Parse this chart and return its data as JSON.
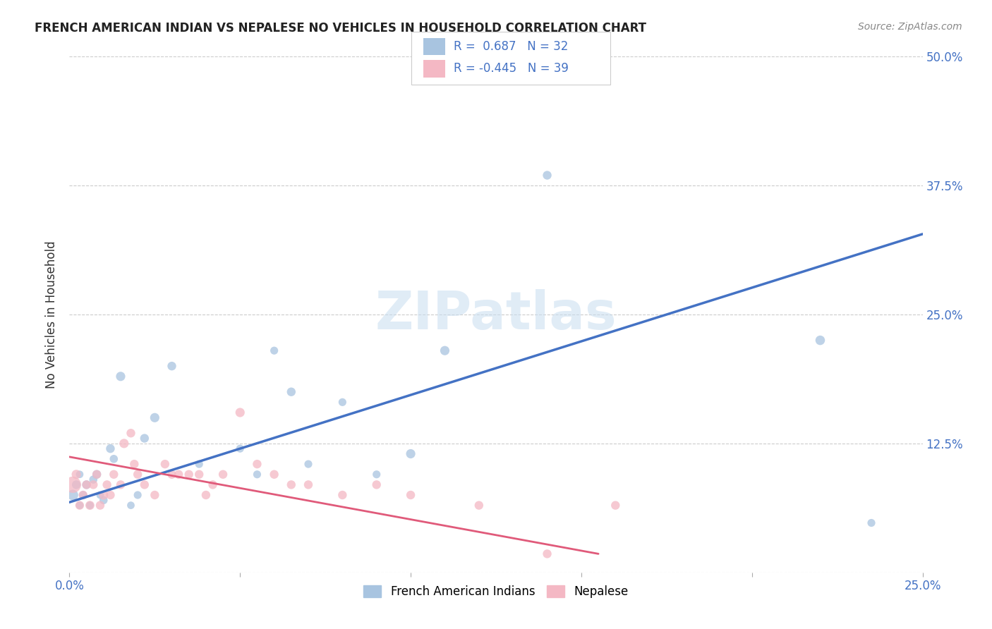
{
  "title": "FRENCH AMERICAN INDIAN VS NEPALESE NO VEHICLES IN HOUSEHOLD CORRELATION CHART",
  "source": "Source: ZipAtlas.com",
  "ylabel": "No Vehicles in Household",
  "xlim": [
    0.0,
    0.25
  ],
  "ylim": [
    0.0,
    0.5
  ],
  "xticks": [
    0.0,
    0.05,
    0.1,
    0.15,
    0.2,
    0.25
  ],
  "xtick_labels": [
    "0.0%",
    "",
    "",
    "",
    "",
    "25.0%"
  ],
  "yticks": [
    0.0,
    0.125,
    0.25,
    0.375,
    0.5
  ],
  "ytick_labels_right": [
    "",
    "12.5%",
    "25.0%",
    "37.5%",
    "50.0%"
  ],
  "blue_color": "#a8c4e0",
  "pink_color": "#f4b8c4",
  "blue_line_color": "#4472c4",
  "pink_line_color": "#e05a7a",
  "legend_label_blue": "French American Indians",
  "legend_label_pink": "Nepalese",
  "watermark": "ZIPatlas",
  "blue_R": 0.687,
  "blue_N": 32,
  "pink_R": -0.445,
  "pink_N": 39,
  "blue_scatter_x": [
    0.001,
    0.002,
    0.003,
    0.003,
    0.004,
    0.005,
    0.006,
    0.007,
    0.008,
    0.009,
    0.01,
    0.012,
    0.013,
    0.015,
    0.018,
    0.02,
    0.022,
    0.025,
    0.03,
    0.038,
    0.05,
    0.055,
    0.06,
    0.065,
    0.07,
    0.08,
    0.09,
    0.1,
    0.11,
    0.14,
    0.22,
    0.235
  ],
  "blue_scatter_y": [
    0.075,
    0.085,
    0.065,
    0.095,
    0.075,
    0.085,
    0.065,
    0.09,
    0.095,
    0.075,
    0.07,
    0.12,
    0.11,
    0.19,
    0.065,
    0.075,
    0.13,
    0.15,
    0.2,
    0.105,
    0.12,
    0.095,
    0.215,
    0.175,
    0.105,
    0.165,
    0.095,
    0.115,
    0.215,
    0.385,
    0.225,
    0.048
  ],
  "blue_scatter_size": [
    120,
    80,
    60,
    60,
    70,
    80,
    60,
    70,
    80,
    60,
    70,
    80,
    70,
    90,
    60,
    65,
    80,
    90,
    80,
    65,
    65,
    65,
    65,
    80,
    65,
    65,
    65,
    90,
    90,
    80,
    95,
    65
  ],
  "pink_scatter_x": [
    0.001,
    0.002,
    0.003,
    0.004,
    0.005,
    0.006,
    0.007,
    0.008,
    0.009,
    0.01,
    0.011,
    0.012,
    0.013,
    0.015,
    0.016,
    0.018,
    0.019,
    0.02,
    0.022,
    0.025,
    0.028,
    0.03,
    0.032,
    0.035,
    0.038,
    0.04,
    0.042,
    0.045,
    0.05,
    0.055,
    0.06,
    0.065,
    0.07,
    0.08,
    0.09,
    0.1,
    0.12,
    0.14,
    0.16
  ],
  "pink_scatter_y": [
    0.085,
    0.095,
    0.065,
    0.075,
    0.085,
    0.065,
    0.085,
    0.095,
    0.065,
    0.075,
    0.085,
    0.075,
    0.095,
    0.085,
    0.125,
    0.135,
    0.105,
    0.095,
    0.085,
    0.075,
    0.105,
    0.095,
    0.095,
    0.095,
    0.095,
    0.075,
    0.085,
    0.095,
    0.155,
    0.105,
    0.095,
    0.085,
    0.085,
    0.075,
    0.085,
    0.075,
    0.065,
    0.018,
    0.065
  ],
  "pink_scatter_size": [
    280,
    90,
    80,
    80,
    80,
    85,
    80,
    80,
    80,
    90,
    80,
    80,
    80,
    80,
    90,
    80,
    80,
    80,
    80,
    80,
    80,
    80,
    80,
    80,
    80,
    80,
    80,
    80,
    90,
    80,
    80,
    80,
    80,
    80,
    80,
    80,
    80,
    80,
    80
  ],
  "blue_line_x": [
    0.0,
    0.25
  ],
  "blue_line_y": [
    0.068,
    0.328
  ],
  "pink_line_x": [
    0.0,
    0.155
  ],
  "pink_line_y": [
    0.112,
    0.018
  ]
}
